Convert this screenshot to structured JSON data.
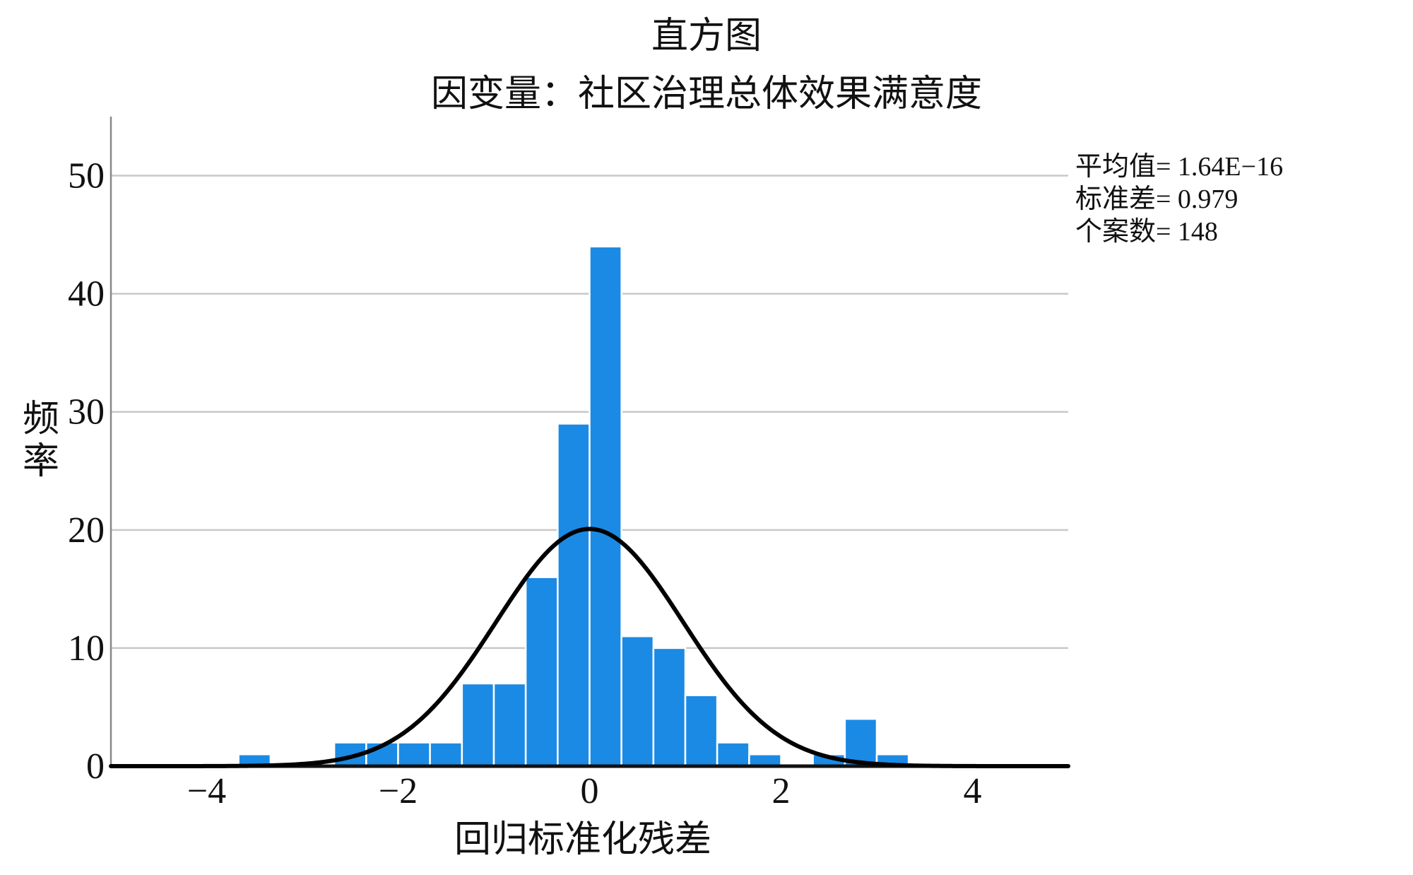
{
  "chart_data": {
    "type": "bar",
    "title": "直方图",
    "subtitle": "因变量：社区治理总体效果满意度",
    "xlabel": "回归标准化残差",
    "ylabel": "频率",
    "xlim": [
      -5,
      5
    ],
    "ylim": [
      0,
      55
    ],
    "x_ticks": [
      -4,
      -2,
      0,
      2,
      4
    ],
    "x_tick_labels": [
      "−4",
      "−2",
      "0",
      "2",
      "4"
    ],
    "y_ticks": [
      0,
      10,
      20,
      30,
      40,
      50
    ],
    "y_tick_labels": [
      "0",
      "10",
      "20",
      "30",
      "40",
      "50"
    ],
    "grid": "horizontal",
    "bin_width": 0.333,
    "bins": [
      {
        "x_start": -3.667,
        "x_end": -3.333,
        "count": 1
      },
      {
        "x_start": -2.667,
        "x_end": -2.333,
        "count": 2
      },
      {
        "x_start": -2.333,
        "x_end": -2.0,
        "count": 2
      },
      {
        "x_start": -2.0,
        "x_end": -1.667,
        "count": 2
      },
      {
        "x_start": -1.667,
        "x_end": -1.333,
        "count": 2
      },
      {
        "x_start": -1.333,
        "x_end": -1.0,
        "count": 7
      },
      {
        "x_start": -1.0,
        "x_end": -0.667,
        "count": 7
      },
      {
        "x_start": -0.667,
        "x_end": -0.333,
        "count": 16
      },
      {
        "x_start": -0.333,
        "x_end": 0.0,
        "count": 29
      },
      {
        "x_start": 0.0,
        "x_end": 0.333,
        "count": 44
      },
      {
        "x_start": 0.333,
        "x_end": 0.667,
        "count": 11
      },
      {
        "x_start": 0.667,
        "x_end": 1.0,
        "count": 10
      },
      {
        "x_start": 1.0,
        "x_end": 1.333,
        "count": 6
      },
      {
        "x_start": 1.333,
        "x_end": 1.667,
        "count": 2
      },
      {
        "x_start": 1.667,
        "x_end": 2.0,
        "count": 1
      },
      {
        "x_start": 2.333,
        "x_end": 2.667,
        "count": 1
      },
      {
        "x_start": 2.667,
        "x_end": 3.0,
        "count": 4
      },
      {
        "x_start": 3.0,
        "x_end": 3.333,
        "count": 1
      }
    ],
    "normal_curve": {
      "mean": 0.0,
      "std": 0.979,
      "n": 148
    },
    "stats": [
      {
        "label": "平均值",
        "value": "1.64E−16"
      },
      {
        "label": "标准差",
        "value": "0.979"
      },
      {
        "label": "个案数",
        "value": "148"
      }
    ],
    "bar_color": "#1a8ae5",
    "bar_edge_color": "#ffffff",
    "curve_color": "#000000",
    "grid_color": "#c8c8c8"
  }
}
